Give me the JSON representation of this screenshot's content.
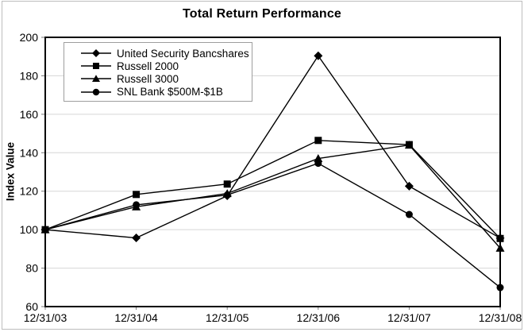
{
  "chart_data": {
    "type": "line",
    "title": "Total Return Performance",
    "xlabel": "",
    "ylabel": "Index Value",
    "categories": [
      "12/31/03",
      "12/31/04",
      "12/31/05",
      "12/31/06",
      "12/31/07",
      "12/31/08"
    ],
    "series": [
      {
        "name": "United Security Bancshares",
        "marker": "diamond",
        "values": [
          100,
          95.7,
          117.6,
          190.4,
          122.6,
          95.6
        ]
      },
      {
        "name": "Russell 2000",
        "marker": "square",
        "values": [
          100,
          118.3,
          123.7,
          146.4,
          144.2,
          95.4
        ]
      },
      {
        "name": "Russell 3000",
        "marker": "triangle",
        "values": [
          100,
          111.9,
          118.8,
          137.0,
          144.0,
          90.4
        ]
      },
      {
        "name": "SNL Bank $500M-$1B",
        "marker": "circle",
        "values": [
          100,
          112.9,
          118.0,
          134.5,
          107.9,
          69.9
        ]
      }
    ],
    "ylim": [
      60,
      200
    ],
    "ytick_step": 20,
    "yticks": [
      60,
      80,
      100,
      120,
      140,
      160,
      180,
      200
    ],
    "grid": true,
    "legend_position": "top-left",
    "line_color": "#000000",
    "grid_color": "#d6d6d6",
    "tick_color": "#777777",
    "frame_color": "#000000"
  }
}
